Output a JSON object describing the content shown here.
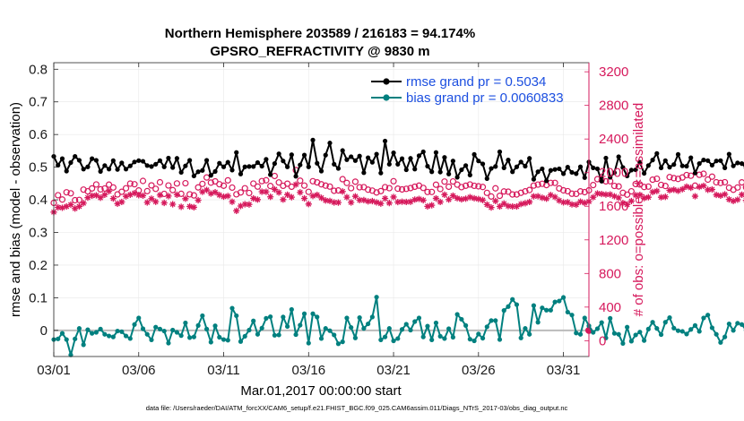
{
  "colors": {
    "rmse": "#000000",
    "bias": "#00807f",
    "obs": "#d6195c",
    "zero_line": "#bbbbbb",
    "grid": "#e8e8e8",
    "legend_text": "#1c4fe0"
  },
  "chart_data": {
    "type": "line",
    "title": "Northern Hemisphere 203589 / 216183 = 94.174%",
    "subtitle": "GPSRO_REFRACTIVITY @ 9830 m",
    "xlabel": "Mar.01,2017 00:00:00 start",
    "ylabel_left": "rmse and bias (model - observation)",
    "ylabel_right": "# of obs: o=possible; ∗=assimilated",
    "footnote": "data file: /Users/raeder/DAI/ATM_forcXX/CAM6_setup/f.e21.FHIST_BGC.f09_025.CAM6assim.011/Diags_NTrS_2017-03/obs_diag_output.nc",
    "x_range": [
      0,
      31.5
    ],
    "ylim_left": [
      -0.08,
      0.82
    ],
    "ylim_right": [
      -188,
      3308
    ],
    "x_ticks": [
      {
        "value": 0,
        "label": "03/01"
      },
      {
        "value": 5,
        "label": "03/06"
      },
      {
        "value": 10,
        "label": "03/11"
      },
      {
        "value": 15,
        "label": "03/16"
      },
      {
        "value": 20,
        "label": "03/21"
      },
      {
        "value": 25,
        "label": "03/26"
      },
      {
        "value": 30,
        "label": "03/31"
      }
    ],
    "y_ticks_left": [
      {
        "value": 0,
        "label": "0"
      },
      {
        "value": 0.1,
        "label": "0.1"
      },
      {
        "value": 0.2,
        "label": "0.2"
      },
      {
        "value": 0.3,
        "label": "0.3"
      },
      {
        "value": 0.4,
        "label": "0.4"
      },
      {
        "value": 0.5,
        "label": "0.5"
      },
      {
        "value": 0.6,
        "label": "0.6"
      },
      {
        "value": 0.7,
        "label": "0.7"
      },
      {
        "value": 0.8,
        "label": "0.8"
      }
    ],
    "y_ticks_right": [
      {
        "value": 0,
        "label": "0"
      },
      {
        "value": 400,
        "label": "400"
      },
      {
        "value": 800,
        "label": "800"
      },
      {
        "value": 1200,
        "label": "1200"
      },
      {
        "value": 1600,
        "label": "1600"
      },
      {
        "value": 2000,
        "label": "2000"
      },
      {
        "value": 2400,
        "label": "2400"
      },
      {
        "value": 2800,
        "label": "2800"
      },
      {
        "value": 3200,
        "label": "3200"
      }
    ],
    "grid": true,
    "legend_location": "top-right",
    "x_step_days": 0.25,
    "series": [
      {
        "name": "rmse grand pr = 0.5034",
        "axis": "left",
        "marker": "filled-circle",
        "values": [
          0.533,
          0.506,
          0.526,
          0.488,
          0.514,
          0.533,
          0.521,
          0.494,
          0.501,
          0.526,
          0.521,
          0.487,
          0.505,
          0.494,
          0.52,
          0.493,
          0.513,
          0.494,
          0.504,
          0.516,
          0.52,
          0.518,
          0.505,
          0.502,
          0.509,
          0.52,
          0.501,
          0.528,
          0.499,
          0.527,
          0.484,
          0.504,
          0.521,
          0.473,
          0.486,
          0.49,
          0.521,
          0.475,
          0.487,
          0.512,
          0.501,
          0.515,
          0.491,
          0.545,
          0.479,
          0.501,
          0.502,
          0.502,
          0.514,
          0.503,
          0.524,
          0.477,
          0.511,
          0.541,
          0.519,
          0.501,
          0.538,
          0.472,
          0.507,
          0.537,
          0.501,
          0.583,
          0.512,
          0.488,
          0.537,
          0.574,
          0.509,
          0.496,
          0.551,
          0.523,
          0.532,
          0.52,
          0.534,
          0.483,
          0.529,
          0.515,
          0.54,
          0.482,
          0.58,
          0.509,
          0.544,
          0.509,
          0.526,
          0.492,
          0.527,
          0.494,
          0.535,
          0.547,
          0.503,
          0.486,
          0.545,
          0.485,
          0.53,
          0.479,
          0.519,
          0.469,
          0.492,
          0.505,
          0.476,
          0.539,
          0.519,
          0.51,
          0.465,
          0.496,
          0.502,
          0.547,
          0.498,
          0.522,
          0.486,
          0.501,
          0.516,
          0.503,
          0.527,
          0.463,
          0.486,
          0.495,
          0.458,
          0.49,
          0.493,
          0.495,
          0.48,
          0.5,
          0.484,
          0.48,
          0.501,
          0.468,
          0.516,
          0.498,
          0.495,
          0.457,
          0.528,
          0.469,
          0.483,
          0.532,
          0.499,
          0.473,
          0.491,
          0.492,
          0.515,
          0.481,
          0.505,
          0.522,
          0.542,
          0.498,
          0.52,
          0.5,
          0.508,
          0.539,
          0.504,
          0.503,
          0.529,
          0.482,
          0.511,
          0.522,
          0.52,
          0.506,
          0.519,
          0.52,
          0.498,
          0.54,
          0.504,
          0.513,
          0.511,
          0.498,
          0.482,
          0.499,
          0.5,
          0.53,
          0.498,
          0.517,
          0.49,
          0.51,
          0.471,
          0.481,
          0.483,
          0.484,
          0.479,
          0.5,
          0.485,
          0.489,
          0.499,
          0.488,
          0.508,
          0.518,
          0.525,
          0.572,
          0.464,
          0.502,
          0.535,
          0.485,
          0.544,
          0.515,
          0.497,
          0.489,
          0.473,
          0.467,
          0.494,
          0.537,
          0.466,
          0.497,
          0.526,
          0.505,
          0.498,
          0.495,
          0.489,
          0.493,
          0.525,
          0.445,
          0.491,
          0.507,
          0.507,
          0.508,
          0.493,
          0.507,
          0.502,
          0.503,
          0.511
        ]
      },
      {
        "name": "bias grand pr = 0.0060833",
        "axis": "left",
        "marker": "filled-circle",
        "values": [
          -0.028,
          -0.026,
          -0.009,
          -0.028,
          -0.075,
          -0.026,
          0.006,
          -0.044,
          0.002,
          -0.009,
          -0.006,
          0.004,
          -0.012,
          -0.017,
          -0.02,
          -0.002,
          -0.004,
          -0.017,
          -0.025,
          0.018,
          0.038,
          0.005,
          -0.012,
          -0.029,
          0.01,
          0.004,
          -0.002,
          -0.039,
          0.001,
          -0.006,
          -0.016,
          0.023,
          -0.022,
          -0.02,
          0.015,
          0.045,
          0.004,
          -0.036,
          0.014,
          -0.021,
          -0.028,
          -0.03,
          0.068,
          0.045,
          -0.034,
          -0.018,
          0.001,
          0.029,
          -0.012,
          0.007,
          0.037,
          0.042,
          -0.015,
          -0.014,
          0.041,
          0.012,
          0.064,
          -0.013,
          0.016,
          0.051,
          -0.039,
          0.051,
          0.041,
          -0.025,
          0.006,
          -0.001,
          -0.014,
          -0.041,
          -0.035,
          0.038,
          0.009,
          -0.023,
          0.039,
          0.006,
          0.02,
          0.041,
          0.102,
          -0.029,
          -0.02,
          0.006,
          -0.032,
          -0.025,
          0.003,
          0.019,
          0.001,
          0.027,
          0.038,
          -0.02,
          0.013,
          -0.029,
          0.023,
          -0.018,
          -0.025,
          0.005,
          -0.021,
          0.049,
          0.034,
          0.015,
          -0.027,
          -0.032,
          -0.011,
          -0.024,
          0.011,
          0.03,
          0.03,
          -0.028,
          0.061,
          0.073,
          0.095,
          0.079,
          -0.023,
          0.006,
          -0.012,
          0.076,
          0.025,
          0.069,
          0.062,
          0.062,
          0.087,
          0.09,
          0.101,
          0.056,
          0.047,
          -0.008,
          -0.012,
          0.038,
          0.014,
          -0.006,
          0.005,
          0.024,
          -0.023,
          0.037,
          -0.009,
          -0.012,
          -0.04,
          0.01,
          -0.033,
          -0.014,
          -0.005,
          -0.031,
          0.004,
          0.025,
          0.006,
          -0.013,
          0.025,
          0.039,
          0.007,
          -0.001,
          -0.003,
          -0.011,
          0.003,
          0.015,
          -0.003,
          0.038,
          0.047,
          0.008,
          -0.012,
          -0.037,
          -0.02,
          0.02,
          0.0,
          0.022,
          0.018,
          0.001,
          -0.039,
          0.028,
          -0.007,
          -0.014,
          -0.004,
          -0.028,
          -0.032,
          -0.013,
          -0.004,
          0.03,
          0.027,
          0.034,
          0.027,
          0.013,
          0.051,
          0.047,
          0.062,
          0.033,
          0.052,
          0.058,
          -0.012,
          0.013,
          0.011,
          -0.029,
          0.038,
          -0.022,
          0.052,
          0.002,
          -0.009,
          0.023,
          -0.023,
          0.013,
          0.057,
          0.001,
          -0.004,
          0.032,
          -0.073,
          -0.016,
          0.01,
          0.056,
          0.039,
          -0.027,
          0.003,
          0.055,
          -0.026,
          0.034,
          0.036,
          0.009,
          0.007,
          -0.007,
          0.004
        ]
      },
      {
        "name": "possible observations",
        "axis": "right",
        "marker": "open-circle",
        "values": [
          1640,
          1731,
          1680,
          1766,
          1754,
          1672,
          1675,
          1798,
          1778,
          1812,
          1859,
          1801,
          1811,
          1857,
          1823,
          1741,
          1772,
          1814,
          1869,
          1862,
          1788,
          1901,
          1780,
          1848,
          1807,
          1885,
          1747,
          1847,
          1792,
          1871,
          1748,
          1874,
          1742,
          1729,
          1824,
          1866,
          1942,
          1881,
          1896,
          1862,
          1844,
          1908,
          1822,
          1742,
          1764,
          1814,
          1758,
          1870,
          1834,
          1899,
          1909,
          1841,
          1960,
          1883,
          1843,
          1868,
          1832,
          2030,
          1904,
          1846,
          1771,
          1898,
          1884,
          1861,
          1845,
          1834,
          1784,
          1788,
          1922,
          1877,
          1815,
          1892,
          1826,
          1827,
          1797,
          1786,
          1764,
          1780,
          1827,
          1815,
          1898,
          1809,
          1800,
          1807,
          1816,
          1832,
          1845,
          1818,
          1770,
          1770,
          1856,
          1805,
          1894,
          1832,
          1895,
          1857,
          1827,
          1844,
          1859,
          1843,
          1837,
          1829,
          1759,
          1716,
          1813,
          1724,
          1776,
          1773,
          1740,
          1740,
          1760,
          1777,
          1793,
          1846,
          1858,
          1867,
          1852,
          1878,
          1878,
          1812,
          1789,
          1779,
          1749,
          1747,
          1777,
          1768,
          1789,
          1852,
          1922,
          1913,
          1896,
          1898,
          1842,
          1836,
          1760,
          1738,
          1778,
          1864,
          1859,
          1829,
          1834,
          1916,
          1927,
          1854,
          1841,
          1946,
          1934,
          1925,
          1942,
          1971,
          1963,
          1845,
          1974,
          1986,
          1917,
          1952,
          1885,
          1877,
          1886,
          1820,
          1796,
          1823,
          1884,
          1824,
          1812,
          1825,
          1815,
          1865,
          1818,
          1846,
          1848,
          1774,
          1902,
          1859,
          1803,
          1800,
          1800,
          1819,
          1861,
          1768,
          1835,
          1896,
          1893,
          1948,
          1911,
          1847,
          1880,
          1823,
          1812,
          1841,
          1857,
          1909,
          1908,
          1890,
          1870,
          1847,
          1907,
          1919,
          1887,
          1895,
          1859,
          1810,
          1856,
          1837,
          1900,
          1866,
          1845,
          1808,
          1853,
          1772,
          1832,
          1778,
          1721,
          1716,
          1733,
          1650
        ]
      },
      {
        "name": "assimilated observations",
        "axis": "right",
        "marker": "asterisk",
        "values": [
          1530,
          1587,
          1582,
          1597,
          1619,
          1573,
          1598,
          1637,
          1702,
          1725,
          1730,
          1701,
          1737,
          1780,
          1692,
          1630,
          1651,
          1718,
          1737,
          1756,
          1732,
          1726,
          1645,
          1690,
          1653,
          1733,
          1640,
          1721,
          1624,
          1737,
          1593,
          1690,
          1597,
          1588,
          1672,
          1771,
          1794,
          1751,
          1767,
          1733,
          1714,
          1722,
          1653,
          1545,
          1603,
          1624,
          1621,
          1693,
          1679,
          1773,
          1772,
          1712,
          1801,
          1764,
          1679,
          1737,
          1708,
          1858,
          1765,
          1693,
          1626,
          1722,
          1735,
          1700,
          1669,
          1663,
          1645,
          1644,
          1776,
          1708,
          1645,
          1718,
          1673,
          1673,
          1658,
          1661,
          1646,
          1632,
          1693,
          1639,
          1710,
          1650,
          1654,
          1651,
          1653,
          1679,
          1687,
          1672,
          1599,
          1612,
          1694,
          1651,
          1737,
          1680,
          1725,
          1695,
          1682,
          1690,
          1708,
          1695,
          1686,
          1673,
          1620,
          1585,
          1662,
          1597,
          1632,
          1602,
          1597,
          1597,
          1626,
          1636,
          1651,
          1718,
          1719,
          1701,
          1690,
          1734,
          1710,
          1668,
          1646,
          1648,
          1622,
          1619,
          1655,
          1640,
          1656,
          1707,
          1752,
          1746,
          1739,
          1740,
          1719,
          1700,
          1639,
          1620,
          1662,
          1732,
          1735,
          1697,
          1707,
          1769,
          1781,
          1707,
          1712,
          1790,
          1797,
          1783,
          1802,
          1834,
          1820,
          1719,
          1830,
          1843,
          1796,
          1800,
          1735,
          1726,
          1742,
          1681,
          1662,
          1678,
          1737,
          1670,
          1663,
          1677,
          1670,
          1718,
          1668,
          1694,
          1700,
          1627,
          1750,
          1708,
          1666,
          1649,
          1649,
          1676,
          1704,
          1628,
          1690,
          1752,
          1742,
          1801,
          1768,
          1703,
          1734,
          1687,
          1678,
          1695,
          1709,
          1756,
          1758,
          1736,
          1727,
          1700,
          1758,
          1770,
          1738,
          1742,
          1712,
          1656,
          1707,
          1689,
          1746,
          1716,
          1698,
          1663,
          1707,
          1626,
          1683,
          1630,
          1583,
          1578,
          1595,
          1514
        ]
      }
    ]
  }
}
